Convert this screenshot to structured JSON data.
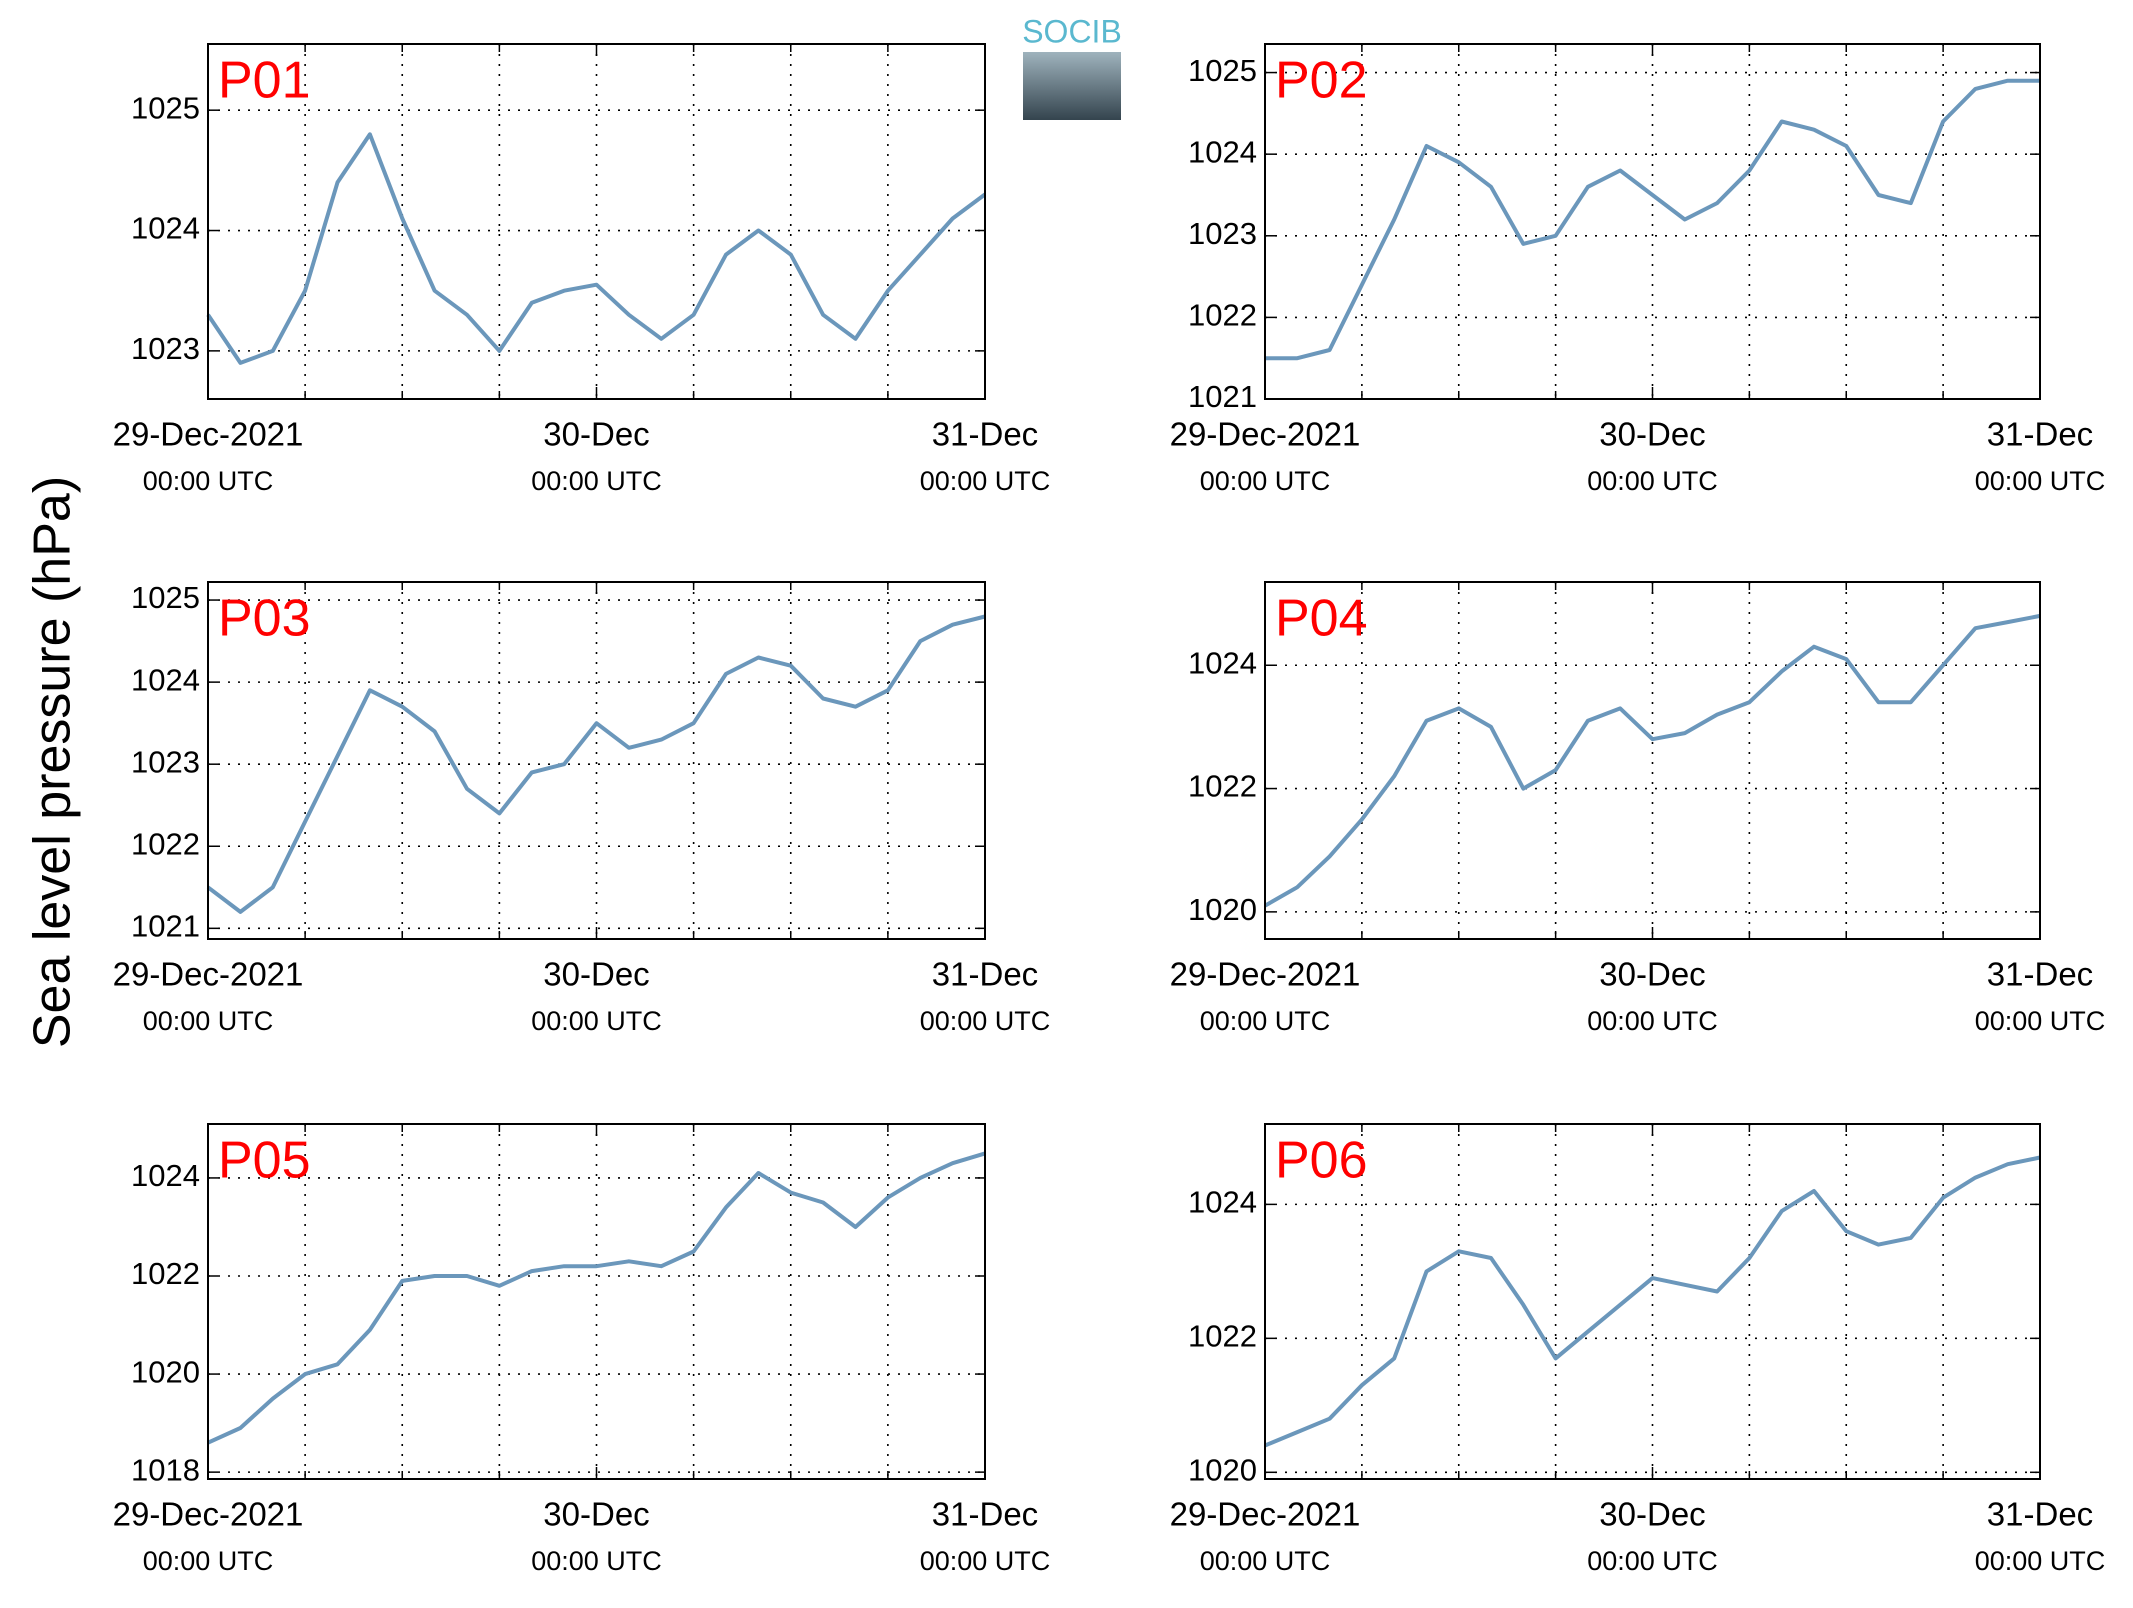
{
  "ylabel": "Sea level pressure (hPa)",
  "logo": "SOCIB",
  "chart_data": [
    {
      "type": "line",
      "title": "P01",
      "title_color": "#ff0000",
      "color": "#6b97bb",
      "grid": true,
      "x": [
        "2021-12-29T00:00",
        "2021-12-29T02:00",
        "2021-12-29T04:00",
        "2021-12-29T06:00",
        "2021-12-29T08:00",
        "2021-12-29T10:00",
        "2021-12-29T12:00",
        "2021-12-29T14:00",
        "2021-12-29T16:00",
        "2021-12-29T18:00",
        "2021-12-29T20:00",
        "2021-12-29T22:00",
        "2021-12-30T00:00",
        "2021-12-30T02:00",
        "2021-12-30T04:00",
        "2021-12-30T06:00",
        "2021-12-30T08:00",
        "2021-12-30T10:00",
        "2021-12-30T12:00",
        "2021-12-30T14:00",
        "2021-12-30T16:00",
        "2021-12-30T18:00",
        "2021-12-30T20:00",
        "2021-12-30T22:00",
        "2021-12-31T00:00"
      ],
      "values": [
        1023.3,
        1022.9,
        1023.0,
        1023.5,
        1024.4,
        1024.8,
        1024.1,
        1023.5,
        1023.3,
        1023.0,
        1023.4,
        1023.5,
        1023.55,
        1023.3,
        1023.1,
        1023.3,
        1023.8,
        1024.0,
        1023.8,
        1023.3,
        1023.1,
        1023.5,
        1023.8,
        1024.1,
        1024.3
      ],
      "xlim": [
        "2021-12-29T00:00",
        "2021-12-31T00:00"
      ],
      "xticks": [
        {
          "value": "2021-12-29T00:00",
          "label": [
            "29-Dec-2021",
            "00:00 UTC"
          ]
        },
        {
          "value": "2021-12-30T00:00",
          "label": [
            "30-Dec",
            "00:00 UTC"
          ]
        },
        {
          "value": "2021-12-31T00:00",
          "label": [
            "31-Dec",
            "00:00 UTC"
          ]
        }
      ],
      "xminor": [
        "2021-12-29T06:00",
        "2021-12-29T12:00",
        "2021-12-29T18:00",
        "2021-12-30T06:00",
        "2021-12-30T12:00",
        "2021-12-30T18:00"
      ],
      "ylim": [
        1022.6,
        1025.55
      ],
      "yticks": [
        1023,
        1024,
        1025
      ]
    },
    {
      "type": "line",
      "title": "P02",
      "title_color": "#ff0000",
      "color": "#6b97bb",
      "grid": true,
      "x": [
        "2021-12-29T00:00",
        "2021-12-29T02:00",
        "2021-12-29T04:00",
        "2021-12-29T06:00",
        "2021-12-29T08:00",
        "2021-12-29T10:00",
        "2021-12-29T12:00",
        "2021-12-29T14:00",
        "2021-12-29T16:00",
        "2021-12-29T18:00",
        "2021-12-29T20:00",
        "2021-12-29T22:00",
        "2021-12-30T00:00",
        "2021-12-30T02:00",
        "2021-12-30T04:00",
        "2021-12-30T06:00",
        "2021-12-30T08:00",
        "2021-12-30T10:00",
        "2021-12-30T12:00",
        "2021-12-30T14:00",
        "2021-12-30T16:00",
        "2021-12-30T18:00",
        "2021-12-30T20:00",
        "2021-12-30T22:00",
        "2021-12-31T00:00"
      ],
      "values": [
        1021.5,
        1021.5,
        1021.6,
        1022.4,
        1023.2,
        1024.1,
        1023.9,
        1023.6,
        1022.9,
        1023.0,
        1023.6,
        1023.8,
        1023.5,
        1023.2,
        1023.4,
        1023.8,
        1024.4,
        1024.3,
        1024.1,
        1023.5,
        1023.4,
        1024.4,
        1024.8,
        1024.9,
        1024.9
      ],
      "xlim": [
        "2021-12-29T00:00",
        "2021-12-31T00:00"
      ],
      "xticks": [
        {
          "value": "2021-12-29T00:00",
          "label": [
            "29-Dec-2021",
            "00:00 UTC"
          ]
        },
        {
          "value": "2021-12-30T00:00",
          "label": [
            "30-Dec",
            "00:00 UTC"
          ]
        },
        {
          "value": "2021-12-31T00:00",
          "label": [
            "31-Dec",
            "00:00 UTC"
          ]
        }
      ],
      "xminor": [
        "2021-12-29T06:00",
        "2021-12-29T12:00",
        "2021-12-29T18:00",
        "2021-12-30T06:00",
        "2021-12-30T12:00",
        "2021-12-30T18:00"
      ],
      "ylim": [
        1021,
        1025.35
      ],
      "yticks": [
        1021,
        1022,
        1023,
        1024,
        1025
      ]
    },
    {
      "type": "line",
      "title": "P03",
      "title_color": "#ff0000",
      "color": "#6b97bb",
      "grid": true,
      "x": [
        "2021-12-29T00:00",
        "2021-12-29T02:00",
        "2021-12-29T04:00",
        "2021-12-29T06:00",
        "2021-12-29T08:00",
        "2021-12-29T10:00",
        "2021-12-29T12:00",
        "2021-12-29T14:00",
        "2021-12-29T16:00",
        "2021-12-29T18:00",
        "2021-12-29T20:00",
        "2021-12-29T22:00",
        "2021-12-30T00:00",
        "2021-12-30T02:00",
        "2021-12-30T04:00",
        "2021-12-30T06:00",
        "2021-12-30T08:00",
        "2021-12-30T10:00",
        "2021-12-30T12:00",
        "2021-12-30T14:00",
        "2021-12-30T16:00",
        "2021-12-30T18:00",
        "2021-12-30T20:00",
        "2021-12-30T22:00",
        "2021-12-31T00:00"
      ],
      "values": [
        1021.5,
        1021.2,
        1021.5,
        1022.3,
        1023.1,
        1023.9,
        1023.7,
        1023.4,
        1022.7,
        1022.4,
        1022.9,
        1023.0,
        1023.5,
        1023.2,
        1023.3,
        1023.5,
        1024.1,
        1024.3,
        1024.2,
        1023.8,
        1023.7,
        1023.9,
        1024.5,
        1024.7,
        1024.8
      ],
      "xlim": [
        "2021-12-29T00:00",
        "2021-12-31T00:00"
      ],
      "xticks": [
        {
          "value": "2021-12-29T00:00",
          "label": [
            "29-Dec-2021",
            "00:00 UTC"
          ]
        },
        {
          "value": "2021-12-30T00:00",
          "label": [
            "30-Dec",
            "00:00 UTC"
          ]
        },
        {
          "value": "2021-12-31T00:00",
          "label": [
            "31-Dec",
            "00:00 UTC"
          ]
        }
      ],
      "xminor": [
        "2021-12-29T06:00",
        "2021-12-29T12:00",
        "2021-12-29T18:00",
        "2021-12-30T06:00",
        "2021-12-30T12:00",
        "2021-12-30T18:00"
      ],
      "ylim": [
        1020.87,
        1025.22
      ],
      "yticks": [
        1021,
        1022,
        1023,
        1024,
        1025
      ]
    },
    {
      "type": "line",
      "title": "P04",
      "title_color": "#ff0000",
      "color": "#6b97bb",
      "grid": true,
      "x": [
        "2021-12-29T00:00",
        "2021-12-29T02:00",
        "2021-12-29T04:00",
        "2021-12-29T06:00",
        "2021-12-29T08:00",
        "2021-12-29T10:00",
        "2021-12-29T12:00",
        "2021-12-29T14:00",
        "2021-12-29T16:00",
        "2021-12-29T18:00",
        "2021-12-29T20:00",
        "2021-12-29T22:00",
        "2021-12-30T00:00",
        "2021-12-30T02:00",
        "2021-12-30T04:00",
        "2021-12-30T06:00",
        "2021-12-30T08:00",
        "2021-12-30T10:00",
        "2021-12-30T12:00",
        "2021-12-30T14:00",
        "2021-12-30T16:00",
        "2021-12-30T18:00",
        "2021-12-30T20:00",
        "2021-12-30T22:00",
        "2021-12-31T00:00"
      ],
      "values": [
        1020.1,
        1020.4,
        1020.9,
        1021.5,
        1022.2,
        1023.1,
        1023.3,
        1023.0,
        1022.0,
        1022.3,
        1023.1,
        1023.3,
        1022.8,
        1022.9,
        1023.2,
        1023.4,
        1023.9,
        1024.3,
        1024.1,
        1023.4,
        1023.4,
        1024.0,
        1024.6,
        1024.7,
        1024.8
      ],
      "xlim": [
        "2021-12-29T00:00",
        "2021-12-31T00:00"
      ],
      "xticks": [
        {
          "value": "2021-12-29T00:00",
          "label": [
            "29-Dec-2021",
            "00:00 UTC"
          ]
        },
        {
          "value": "2021-12-30T00:00",
          "label": [
            "30-Dec",
            "00:00 UTC"
          ]
        },
        {
          "value": "2021-12-31T00:00",
          "label": [
            "31-Dec",
            "00:00 UTC"
          ]
        }
      ],
      "xminor": [
        "2021-12-29T06:00",
        "2021-12-29T12:00",
        "2021-12-29T18:00",
        "2021-12-30T06:00",
        "2021-12-30T12:00",
        "2021-12-30T18:00"
      ],
      "ylim": [
        1019.56,
        1025.35
      ],
      "yticks": [
        1020,
        1022,
        1024
      ]
    },
    {
      "type": "line",
      "title": "P05",
      "title_color": "#ff0000",
      "color": "#6b97bb",
      "grid": true,
      "x": [
        "2021-12-29T00:00",
        "2021-12-29T02:00",
        "2021-12-29T04:00",
        "2021-12-29T06:00",
        "2021-12-29T08:00",
        "2021-12-29T10:00",
        "2021-12-29T12:00",
        "2021-12-29T14:00",
        "2021-12-29T16:00",
        "2021-12-29T18:00",
        "2021-12-29T20:00",
        "2021-12-29T22:00",
        "2021-12-30T00:00",
        "2021-12-30T02:00",
        "2021-12-30T04:00",
        "2021-12-30T06:00",
        "2021-12-30T08:00",
        "2021-12-30T10:00",
        "2021-12-30T12:00",
        "2021-12-30T14:00",
        "2021-12-30T16:00",
        "2021-12-30T18:00",
        "2021-12-30T20:00",
        "2021-12-30T22:00",
        "2021-12-31T00:00"
      ],
      "values": [
        1018.6,
        1018.9,
        1019.5,
        1020.0,
        1020.2,
        1020.9,
        1021.9,
        1022.0,
        1022.0,
        1021.8,
        1022.1,
        1022.2,
        1022.2,
        1022.3,
        1022.2,
        1022.5,
        1023.4,
        1024.1,
        1023.7,
        1023.5,
        1023.0,
        1023.6,
        1024.0,
        1024.3,
        1024.5
      ],
      "xlim": [
        "2021-12-29T00:00",
        "2021-12-31T00:00"
      ],
      "xticks": [
        {
          "value": "2021-12-29T00:00",
          "label": [
            "29-Dec-2021",
            "00:00 UTC"
          ]
        },
        {
          "value": "2021-12-30T00:00",
          "label": [
            "30-Dec",
            "00:00 UTC"
          ]
        },
        {
          "value": "2021-12-31T00:00",
          "label": [
            "31-Dec",
            "00:00 UTC"
          ]
        }
      ],
      "xminor": [
        "2021-12-29T06:00",
        "2021-12-29T12:00",
        "2021-12-29T18:00",
        "2021-12-30T06:00",
        "2021-12-30T12:00",
        "2021-12-30T18:00"
      ],
      "ylim": [
        1017.86,
        1025.1
      ],
      "yticks": [
        1018,
        1020,
        1022,
        1024
      ]
    },
    {
      "type": "line",
      "title": "P06",
      "title_color": "#ff0000",
      "color": "#6b97bb",
      "grid": true,
      "x": [
        "2021-12-29T00:00",
        "2021-12-29T02:00",
        "2021-12-29T04:00",
        "2021-12-29T06:00",
        "2021-12-29T08:00",
        "2021-12-29T10:00",
        "2021-12-29T12:00",
        "2021-12-29T14:00",
        "2021-12-29T16:00",
        "2021-12-29T18:00",
        "2021-12-29T20:00",
        "2021-12-29T22:00",
        "2021-12-30T00:00",
        "2021-12-30T02:00",
        "2021-12-30T04:00",
        "2021-12-30T06:00",
        "2021-12-30T08:00",
        "2021-12-30T10:00",
        "2021-12-30T12:00",
        "2021-12-30T14:00",
        "2021-12-30T16:00",
        "2021-12-30T18:00",
        "2021-12-30T20:00",
        "2021-12-30T22:00",
        "2021-12-31T00:00"
      ],
      "values": [
        1020.4,
        1020.6,
        1020.8,
        1021.3,
        1021.7,
        1023.0,
        1023.3,
        1023.2,
        1022.5,
        1021.7,
        1022.1,
        1022.5,
        1022.9,
        1022.8,
        1022.7,
        1023.2,
        1023.9,
        1024.2,
        1023.6,
        1023.4,
        1023.5,
        1024.1,
        1024.4,
        1024.6,
        1024.7
      ],
      "xlim": [
        "2021-12-29T00:00",
        "2021-12-31T00:00"
      ],
      "xticks": [
        {
          "value": "2021-12-29T00:00",
          "label": [
            "29-Dec-2021",
            "00:00 UTC"
          ]
        },
        {
          "value": "2021-12-30T00:00",
          "label": [
            "30-Dec",
            "00:00 UTC"
          ]
        },
        {
          "value": "2021-12-31T00:00",
          "label": [
            "31-Dec",
            "00:00 UTC"
          ]
        }
      ],
      "xminor": [
        "2021-12-29T06:00",
        "2021-12-29T12:00",
        "2021-12-29T18:00",
        "2021-12-30T06:00",
        "2021-12-30T12:00",
        "2021-12-30T18:00"
      ],
      "ylim": [
        1019.9,
        1025.2
      ],
      "yticks": [
        1020,
        1022,
        1024
      ]
    }
  ]
}
